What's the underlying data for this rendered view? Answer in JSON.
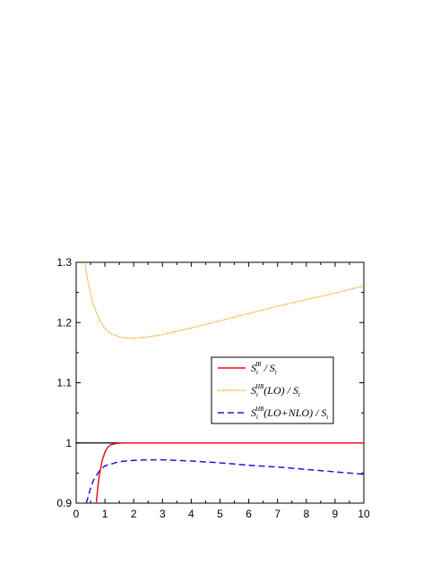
{
  "chart_data": {
    "type": "line",
    "xlim": [
      0,
      10
    ],
    "ylim": [
      0.9,
      1.3
    ],
    "xticks": [
      "0",
      "1",
      "2",
      "3",
      "4",
      "5",
      "6",
      "7",
      "8",
      "9",
      "10"
    ],
    "yticks": [
      "0.9",
      "1",
      "1.1",
      "1.2",
      "1.3"
    ],
    "xtick_values": [
      0,
      1,
      2,
      3,
      4,
      5,
      6,
      7,
      8,
      9,
      10
    ],
    "ytick_values": [
      0.9,
      1.0,
      1.1,
      1.2,
      1.3
    ],
    "grid": false,
    "legend_position": "center-right",
    "reference_line": {
      "y": 1.0,
      "color": "#000000"
    },
    "series": [
      {
        "label_main": "S",
        "label_sub": "t",
        "label_sup": "IR",
        "label_rest": " / S",
        "label_rest_sub": "t",
        "label_tail": "",
        "color": "#e8141c",
        "dash": "solid",
        "x": [
          0.7,
          0.75,
          0.8,
          0.9,
          1.0,
          1.1,
          1.2,
          1.4,
          1.6,
          2.0,
          3.0,
          5.0,
          10.0
        ],
        "y": [
          0.9,
          0.925,
          0.945,
          0.97,
          0.985,
          0.993,
          0.997,
          0.999,
          1.0,
          1.0,
          1.0,
          1.0,
          1.0
        ]
      },
      {
        "label_main": "S",
        "label_sub": "t",
        "label_sup": "HB",
        "label_rest": "(LO) / S",
        "label_rest_sub": "t",
        "label_tail": "",
        "color": "#f0a010",
        "dash": "dotted",
        "x": [
          0.3,
          0.4,
          0.5,
          0.6,
          0.8,
          1.0,
          1.2,
          1.5,
          1.8,
          2.0,
          2.5,
          3.0,
          4.0,
          5.0,
          6.0,
          7.0,
          8.0,
          9.0,
          10.0
        ],
        "y": [
          1.3,
          1.27,
          1.248,
          1.23,
          1.205,
          1.19,
          1.182,
          1.176,
          1.174,
          1.174,
          1.176,
          1.18,
          1.191,
          1.203,
          1.215,
          1.227,
          1.238,
          1.249,
          1.261
        ]
      },
      {
        "label_main": "S",
        "label_sub": "t",
        "label_sup": "HB",
        "label_rest": "(LO+NLO) / S",
        "label_rest_sub": "t",
        "label_tail": "",
        "color": "#1a1adc",
        "dash": "dashed",
        "x": [
          0.35,
          0.4,
          0.5,
          0.6,
          0.8,
          1.0,
          1.5,
          2.0,
          2.5,
          3.0,
          4.0,
          5.0,
          6.0,
          7.0,
          8.0,
          9.0,
          10.0
        ],
        "y": [
          0.9,
          0.908,
          0.925,
          0.938,
          0.953,
          0.962,
          0.969,
          0.971,
          0.972,
          0.972,
          0.97,
          0.967,
          0.963,
          0.96,
          0.956,
          0.952,
          0.948
        ]
      }
    ]
  }
}
